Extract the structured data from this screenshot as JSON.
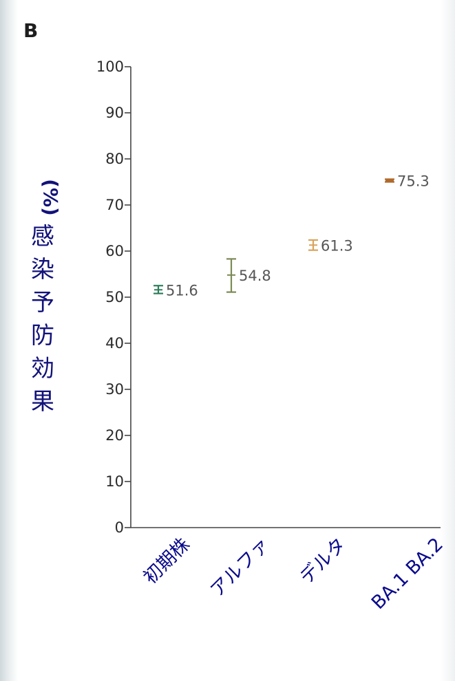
{
  "panel_label": "B",
  "colors": {
    "axis": "#444444",
    "label_blue": "#12127a",
    "category_blue": "#0a0a8c"
  },
  "chart_data": {
    "type": "scatter",
    "title": "",
    "xlabel": "",
    "ylabel": "感染予防効果",
    "ylabel_unit": "(%)",
    "ylim": [
      0,
      100
    ],
    "yticks": [
      0,
      10,
      20,
      30,
      40,
      50,
      60,
      70,
      80,
      90,
      100
    ],
    "grid": false,
    "categories": [
      "初期株",
      "アルファ",
      "デルタ",
      "BA.1 BA.2"
    ],
    "series": [
      {
        "values": [
          51.6,
          54.8,
          61.3,
          75.3
        ],
        "lower": [
          50.8,
          51.1,
          60.2,
          75.0
        ],
        "upper": [
          52.5,
          58.3,
          62.4,
          75.6
        ],
        "labels": [
          "51.6",
          "54.8",
          "61.3",
          "75.3"
        ],
        "colors": [
          "#2e7d5b",
          "#7b8a55",
          "#d9a35b",
          "#b06a2c"
        ]
      }
    ]
  }
}
